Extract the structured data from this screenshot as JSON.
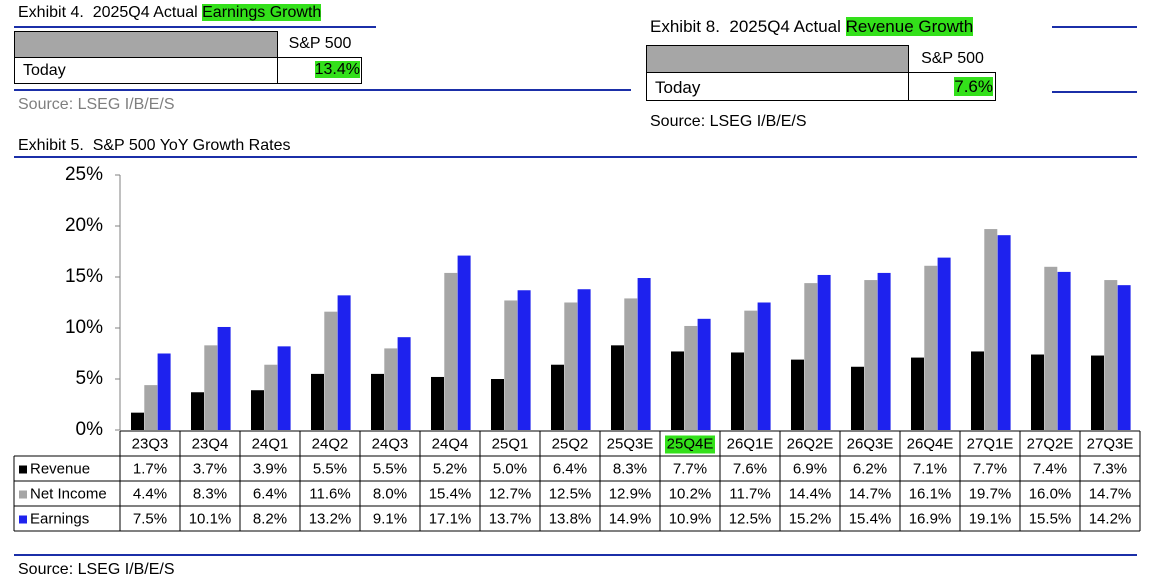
{
  "exhibit4": {
    "title": "Exhibit 4.  2025Q4 Actual ",
    "title_highlight": "Earnings Growth",
    "column": "S&P 500",
    "row_label": "Today",
    "value": "13.4%",
    "source": "Source: LSEG I/B/E/S"
  },
  "exhibit8": {
    "title": "Exhibit 8.  2025Q4 Actual ",
    "title_highlight": "Revenue Growth",
    "column": "S&P 500",
    "row_label": "Today",
    "value": "7.6%",
    "source": "Source: LSEG I/B/E/S"
  },
  "chart_data": {
    "type": "bar",
    "title": "Exhibit 5.  S&P 500 YoY Growth Rates",
    "categories": [
      "23Q3",
      "23Q4",
      "24Q1",
      "24Q2",
      "24Q3",
      "24Q4",
      "25Q1",
      "25Q2",
      "25Q3E",
      "25Q4E",
      "26Q1E",
      "26Q2E",
      "26Q3E",
      "26Q4E",
      "27Q1E",
      "27Q2E",
      "27Q3E"
    ],
    "series": [
      {
        "name": "Revenue",
        "color": "#000000",
        "values": [
          1.7,
          3.7,
          3.9,
          5.5,
          5.5,
          5.2,
          5.0,
          6.4,
          8.3,
          7.7,
          7.6,
          6.9,
          6.2,
          7.1,
          7.7,
          7.4,
          7.3
        ],
        "value_labels": [
          "1.7%",
          "3.7%",
          "3.9%",
          "5.5%",
          "5.5%",
          "5.2%",
          "5.0%",
          "6.4%",
          "8.3%",
          "7.7%",
          "7.6%",
          "6.9%",
          "6.2%",
          "7.1%",
          "7.7%",
          "7.4%",
          "7.3%"
        ]
      },
      {
        "name": "Net Income",
        "color": "#a6a6a6",
        "values": [
          4.4,
          8.3,
          6.4,
          11.6,
          8.0,
          15.4,
          12.7,
          12.5,
          12.9,
          10.2,
          11.7,
          14.4,
          14.7,
          16.1,
          19.7,
          16.0,
          14.7
        ],
        "value_labels": [
          "4.4%",
          "8.3%",
          "6.4%",
          "11.6%",
          "8.0%",
          "15.4%",
          "12.7%",
          "12.5%",
          "12.9%",
          "10.2%",
          "11.7%",
          "14.4%",
          "14.7%",
          "16.1%",
          "19.7%",
          "16.0%",
          "14.7%"
        ]
      },
      {
        "name": "Earnings",
        "color": "#1e22ee",
        "values": [
          7.5,
          10.1,
          8.2,
          13.2,
          9.1,
          17.1,
          13.7,
          13.8,
          14.9,
          10.9,
          12.5,
          15.2,
          15.4,
          16.9,
          19.1,
          15.5,
          14.2
        ],
        "value_labels": [
          "7.5%",
          "10.1%",
          "8.2%",
          "13.2%",
          "9.1%",
          "17.1%",
          "13.7%",
          "13.8%",
          "14.9%",
          "10.9%",
          "12.5%",
          "15.2%",
          "15.4%",
          "16.9%",
          "19.1%",
          "15.5%",
          "14.2%"
        ]
      }
    ],
    "ylim": [
      0,
      25
    ],
    "yticks": [
      {
        "value": 0,
        "label": "0%"
      },
      {
        "value": 5,
        "label": "5%"
      },
      {
        "value": 10,
        "label": "10%"
      },
      {
        "value": 15,
        "label": "15%"
      },
      {
        "value": 20,
        "label": "20%"
      },
      {
        "value": 25,
        "label": "25%"
      }
    ],
    "source": "Source: LSEG I/B/E/S"
  }
}
